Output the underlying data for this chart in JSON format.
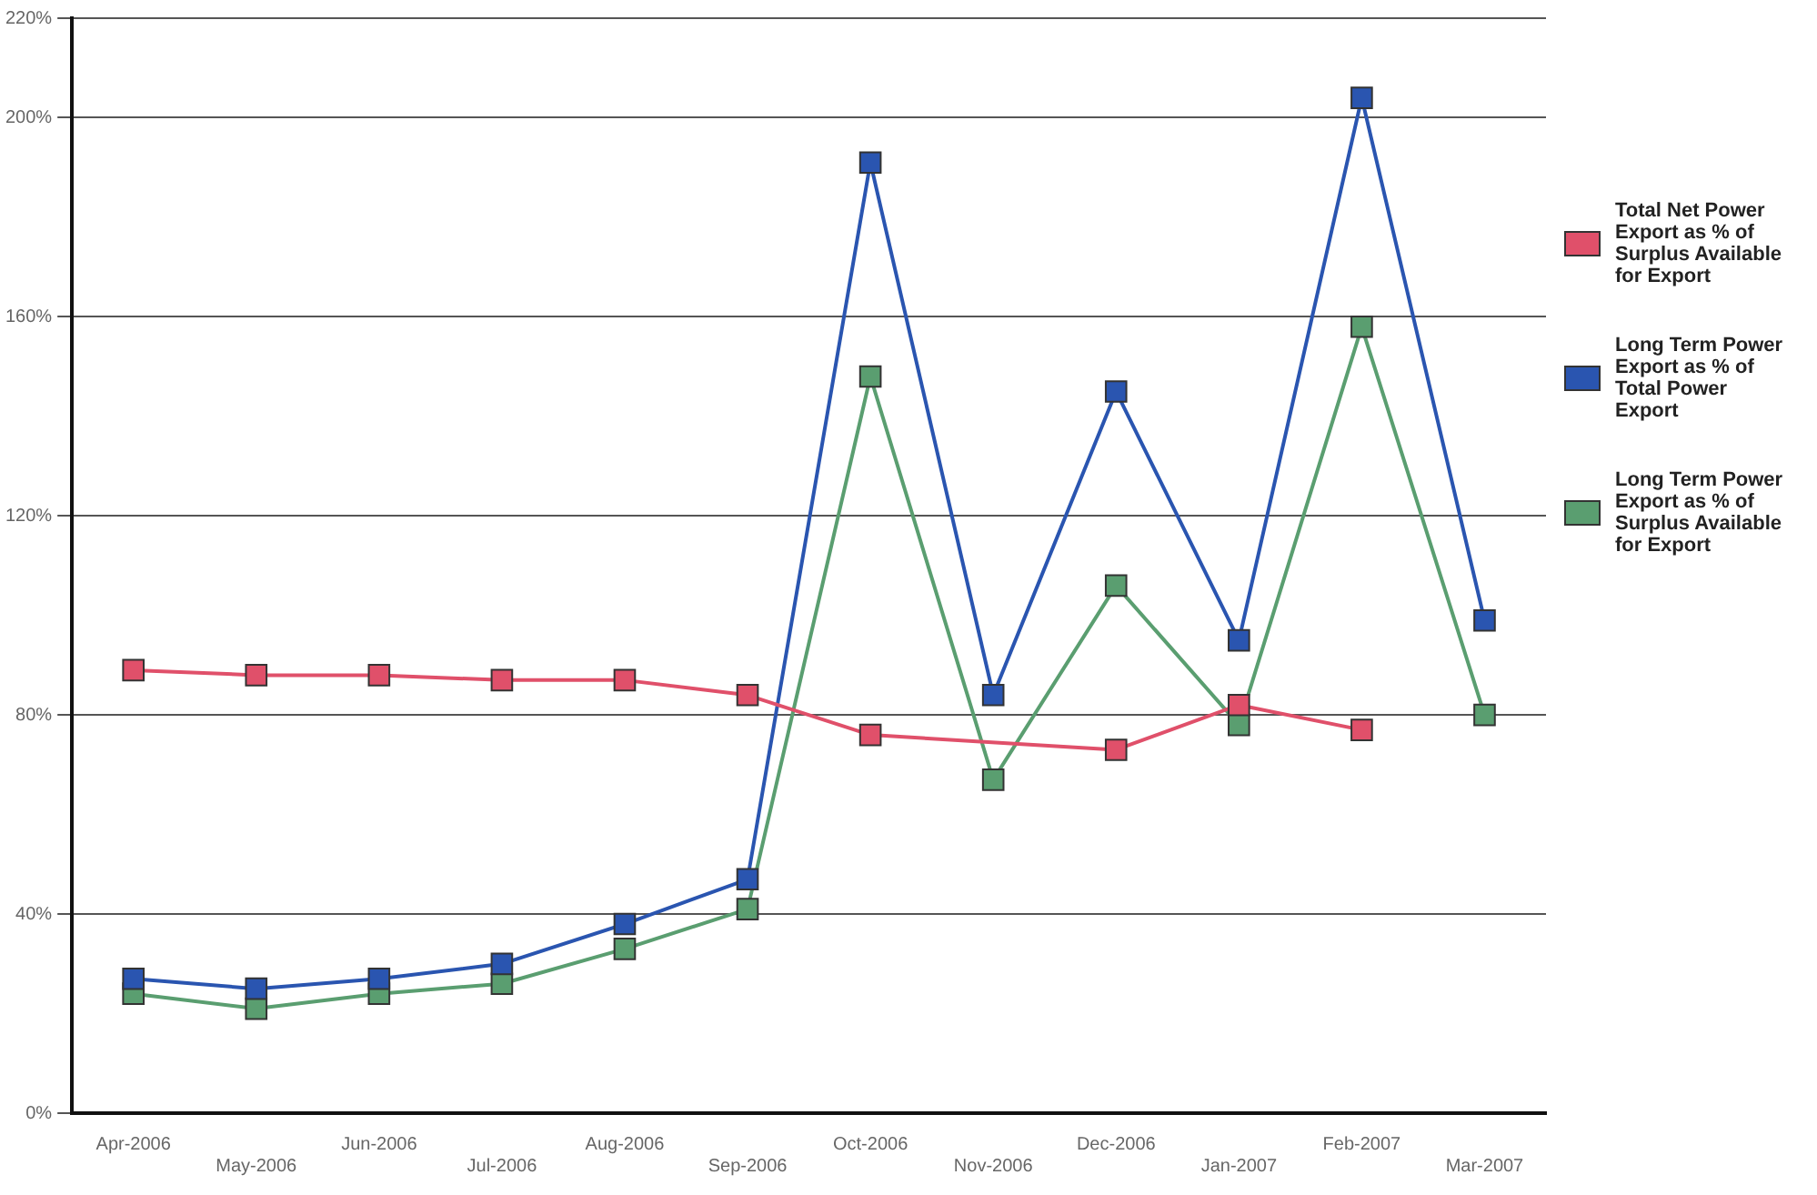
{
  "chart_data": {
    "type": "line",
    "categories": [
      "Apr-2006",
      "May-2006",
      "Jun-2006",
      "Jul-2006",
      "Aug-2006",
      "Sep-2006",
      "Oct-2006",
      "Nov-2006",
      "Dec-2006",
      "Jan-2007",
      "Feb-2007",
      "Mar-2007"
    ],
    "series": [
      {
        "name": "Total Net Power Export as % of Surplus Available for Export",
        "color": "#e0506a",
        "values": [
          89,
          88,
          88,
          87,
          87,
          84,
          76,
          null,
          73,
          82,
          77,
          null
        ]
      },
      {
        "name": "Long Term Power Export as % of Total Power Export",
        "color": "#2a55b0",
        "values": [
          27,
          25,
          27,
          30,
          38,
          47,
          191,
          84,
          145,
          95,
          204,
          99
        ]
      },
      {
        "name": "Long Term Power Export as % of Surplus Available for Export",
        "color": "#5a9e70",
        "values": [
          24,
          21,
          24,
          26,
          33,
          41,
          148,
          67,
          106,
          78,
          158,
          80
        ]
      }
    ],
    "ylim": [
      0,
      220
    ],
    "yticks": [
      {
        "value": 0,
        "label": "0%"
      },
      {
        "value": 40,
        "label": "40%"
      },
      {
        "value": 80,
        "label": "80%"
      },
      {
        "value": 120,
        "label": "120%"
      },
      {
        "value": 160,
        "label": "160%"
      },
      {
        "value": 200,
        "label": "200%"
      },
      {
        "value": 220,
        "label": "220%"
      }
    ],
    "grid": "y",
    "legend": "right",
    "marker": "square"
  }
}
